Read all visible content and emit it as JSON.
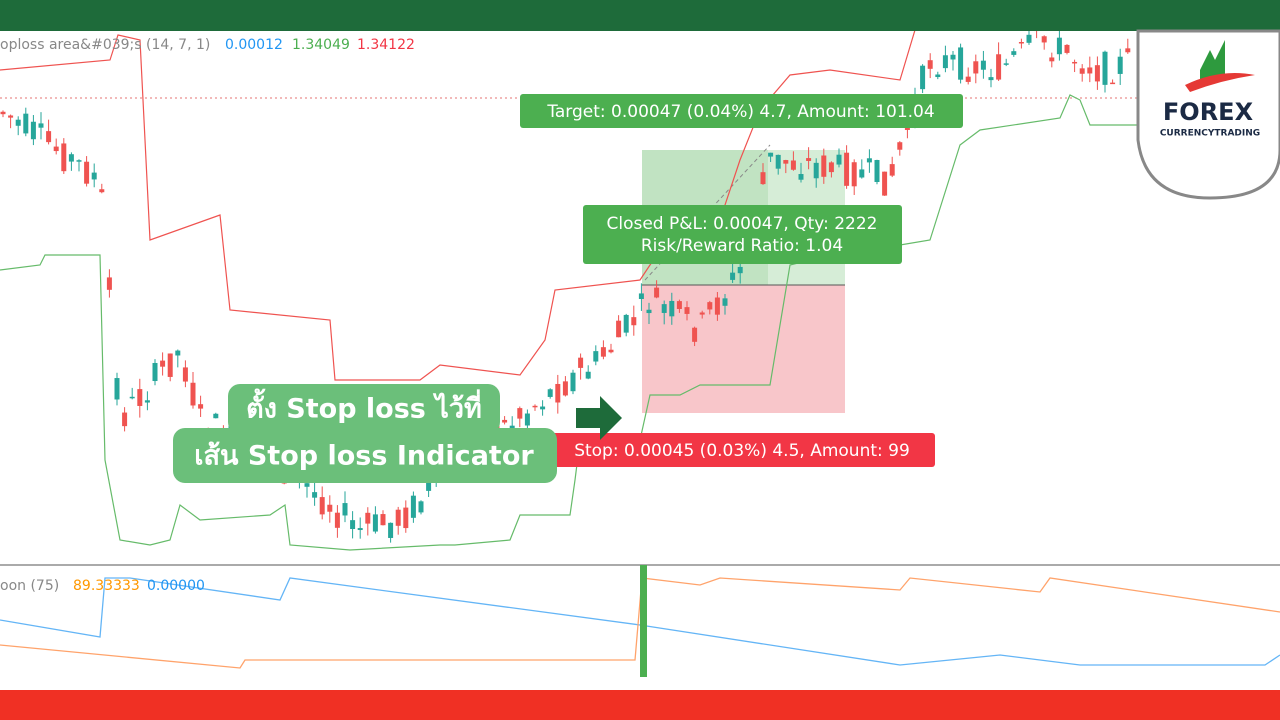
{
  "indicator_legend": {
    "name": "oploss area&#039;s (14, 7, 1)",
    "value_1": "0.00012",
    "value_2": "1.34049",
    "value_3": "1.34122"
  },
  "position": {
    "target_label": "Target: 0.00047 (0.04%) 4.7, Amount: 101.04",
    "closed_label": "Closed P&L: 0.00047, Qty: 2222",
    "ratio_label": "Risk/Reward Ratio: 1.04",
    "stop_label": "Stop: 0.00045 (0.03%) 4.5, Amount: 99"
  },
  "callout": {
    "line_1": "ตั้ง Stop loss ไว้ที่",
    "line_2": "เส้น Stop loss Indicator"
  },
  "lower_legend": {
    "name": "oon (75)",
    "value_1": "89.33333",
    "value_2": "0.00000"
  },
  "logo": {
    "brand": "FOREX",
    "tagline": "CURRENCYTRADING"
  }
}
